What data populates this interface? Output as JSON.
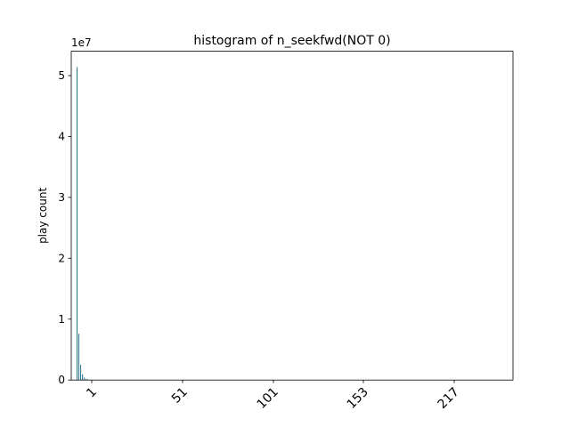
{
  "chart_data": {
    "type": "bar",
    "title": "histogram of n_seekfwd(NOT 0)",
    "xlabel": "",
    "ylabel": "play count",
    "y_scale_label": "1e7",
    "y_multiplier": 10000000,
    "ylim": [
      0,
      54000000
    ],
    "x_tick_labels": [
      "1",
      "51",
      "101",
      "153",
      "217"
    ],
    "x_tick_rotation_deg": 45,
    "y_ticks": [
      0,
      1,
      2,
      3,
      4,
      5
    ],
    "bar_color": "#1f6f8b",
    "grid": false,
    "series": [
      {
        "values": [
          51400000,
          7600000,
          2500000,
          950000,
          420000,
          210000,
          120000,
          70000,
          40000,
          25000,
          15000,
          9000,
          6000,
          4000,
          2500,
          1800,
          1200,
          800,
          500,
          300
        ]
      }
    ]
  }
}
